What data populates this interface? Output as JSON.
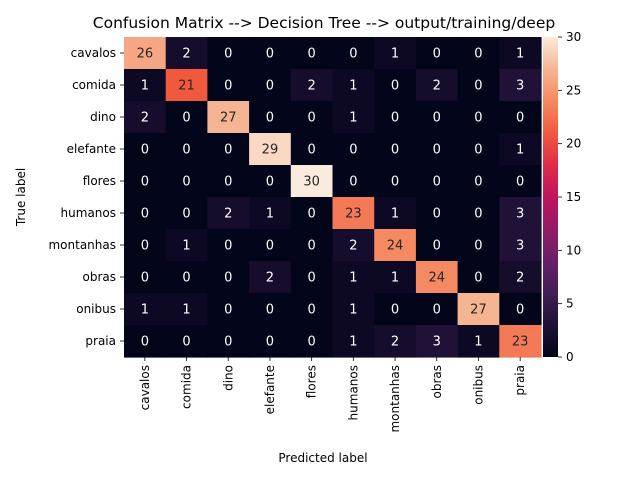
{
  "chart_data": {
    "type": "heatmap",
    "title": "Confusion Matrix --> Decision Tree --> output/training/deep",
    "xlabel": "Predicted label",
    "ylabel": "True label",
    "categories": [
      "cavalos",
      "comida",
      "dino",
      "elefante",
      "flores",
      "humanos",
      "montanhas",
      "obras",
      "onibus",
      "praia"
    ],
    "matrix": [
      [
        26,
        2,
        0,
        0,
        0,
        0,
        1,
        0,
        0,
        1
      ],
      [
        1,
        21,
        0,
        0,
        2,
        1,
        0,
        2,
        0,
        3
      ],
      [
        2,
        0,
        27,
        0,
        0,
        1,
        0,
        0,
        0,
        0
      ],
      [
        0,
        0,
        0,
        29,
        0,
        0,
        0,
        0,
        0,
        1
      ],
      [
        0,
        0,
        0,
        0,
        30,
        0,
        0,
        0,
        0,
        0
      ],
      [
        0,
        0,
        2,
        1,
        0,
        23,
        1,
        0,
        0,
        3
      ],
      [
        0,
        1,
        0,
        0,
        0,
        2,
        24,
        0,
        0,
        3
      ],
      [
        0,
        0,
        0,
        2,
        0,
        1,
        1,
        24,
        0,
        2
      ],
      [
        1,
        1,
        0,
        0,
        0,
        1,
        0,
        0,
        27,
        0
      ],
      [
        0,
        0,
        0,
        0,
        0,
        1,
        2,
        3,
        1,
        23
      ]
    ],
    "colorbar": {
      "range": [
        0,
        30
      ],
      "ticks": [
        "0",
        "5",
        "10",
        "15",
        "20",
        "25",
        "30"
      ],
      "colormap": "rocket"
    },
    "grid": false
  }
}
